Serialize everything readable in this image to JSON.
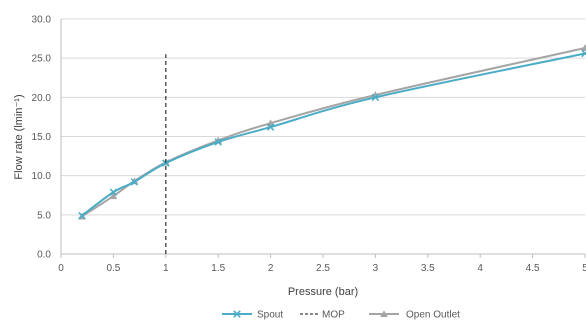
{
  "chart_data": {
    "type": "line",
    "title": "",
    "xlabel": "Pressure (bar)",
    "ylabel": "Flow rate (lmin⁻¹)",
    "xlim": [
      0,
      5
    ],
    "ylim": [
      0,
      30
    ],
    "x_ticks": [
      "0",
      "0.5",
      "1",
      "1.5",
      "2",
      "2.5",
      "3",
      "3.5",
      "4",
      "4.5",
      "5"
    ],
    "y_ticks": [
      "0.0",
      "5.0",
      "10.0",
      "15.0",
      "20.0",
      "25.0",
      "30.0"
    ],
    "grid": "horizontal",
    "legend_position": "bottom",
    "series": [
      {
        "name": "Spout",
        "color": "#4bacc6",
        "marker": "x",
        "x": [
          0.2,
          0.5,
          0.7,
          1.0,
          1.5,
          2.0,
          3.0,
          5.0
        ],
        "y": [
          4.9,
          7.9,
          9.2,
          11.6,
          14.3,
          16.2,
          20.0,
          25.6
        ]
      },
      {
        "name": "MOP",
        "color": "#404040",
        "style": "dashed",
        "x": [
          1.0,
          1.0
        ],
        "y": [
          0,
          25.5
        ]
      },
      {
        "name": "Open Outlet",
        "color": "#a5a5a5",
        "marker": "triangle",
        "x": [
          0.2,
          0.5,
          0.7,
          1.0,
          1.5,
          2.0,
          3.0,
          5.0
        ],
        "y": [
          4.8,
          7.4,
          9.3,
          11.7,
          14.5,
          16.7,
          20.3,
          26.3
        ]
      }
    ]
  }
}
